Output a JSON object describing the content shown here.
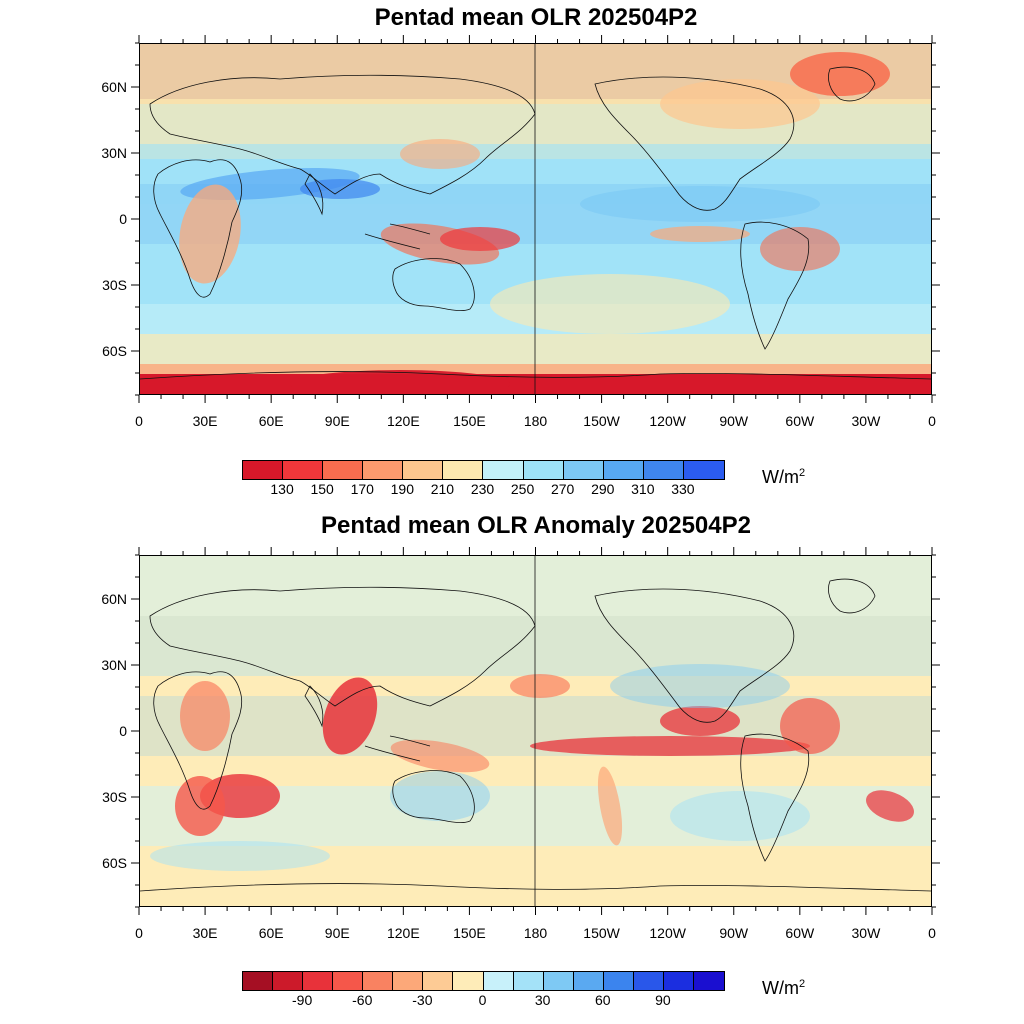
{
  "panels": [
    {
      "id": "olr",
      "title": "Pentad mean OLR 202504P2",
      "lat_labels": [
        "60N",
        "30N",
        "0",
        "30S",
        "60S"
      ],
      "lon_labels": [
        "0",
        "30E",
        "60E",
        "90E",
        "120E",
        "150E",
        "180",
        "150W",
        "120W",
        "90W",
        "60W",
        "30W",
        "0"
      ],
      "colorbar": {
        "colors": [
          "#d7182a",
          "#f0373a",
          "#f86d4f",
          "#fc9a6e",
          "#fdc68e",
          "#fde9b0",
          "#c3f1f9",
          "#9ee3f8",
          "#7cc8f5",
          "#57a8f3",
          "#3f86ef",
          "#2b5cf0"
        ],
        "labels": [
          "130",
          "150",
          "170",
          "190",
          "210",
          "230",
          "250",
          "270",
          "290",
          "310",
          "330"
        ],
        "units": "W/m",
        "units_sup": "2"
      }
    },
    {
      "id": "anomaly",
      "title": "Pentad mean OLR Anomaly 202504P2",
      "lat_labels": [
        "60N",
        "30N",
        "0",
        "30S",
        "60S"
      ],
      "lon_labels": [
        "0",
        "30E",
        "60E",
        "90E",
        "120E",
        "150E",
        "180",
        "150W",
        "120W",
        "90W",
        "60W",
        "30W",
        "0"
      ],
      "colorbar": {
        "colors": [
          "#a50f23",
          "#cc1a2a",
          "#e8323a",
          "#f5574a",
          "#f98261",
          "#fca879",
          "#fdcb95",
          "#feecb8",
          "#c8f1fa",
          "#a4e2f8",
          "#7ec9f4",
          "#5aa9f1",
          "#3b84ee",
          "#2957ea",
          "#1b2ee0",
          "#1a0fd0"
        ],
        "labels": [
          "-90",
          "-60",
          "-30",
          "0",
          "30",
          "60",
          "90"
        ],
        "units": "W/m",
        "units_sup": "2"
      }
    }
  ]
}
